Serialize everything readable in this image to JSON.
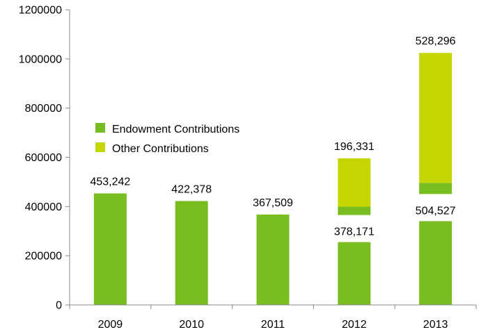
{
  "chart_data": {
    "type": "bar",
    "categories": [
      "2009",
      "2010",
      "2011",
      "2012",
      "2013"
    ],
    "y_ticks": [
      "0",
      "200000",
      "400000",
      "600000",
      "800000",
      "1000000",
      "1200000"
    ],
    "ylim": [
      0,
      1200000
    ],
    "grid": false,
    "legend_position": "center-left",
    "series": [
      {
        "name": "Endowment Contributions",
        "color": "#78BE21",
        "values": [
          453242,
          422378,
          367509,
          378171,
          504527
        ],
        "labels": [
          "453,242",
          "422,378",
          "367,509",
          "378,171",
          "504,527"
        ]
      },
      {
        "name": "Other Contributions",
        "color": "#C5D600",
        "values": [
          null,
          null,
          null,
          196331,
          528296
        ],
        "labels": [
          "",
          "",
          "",
          "196,331",
          "528,296"
        ]
      }
    ]
  }
}
